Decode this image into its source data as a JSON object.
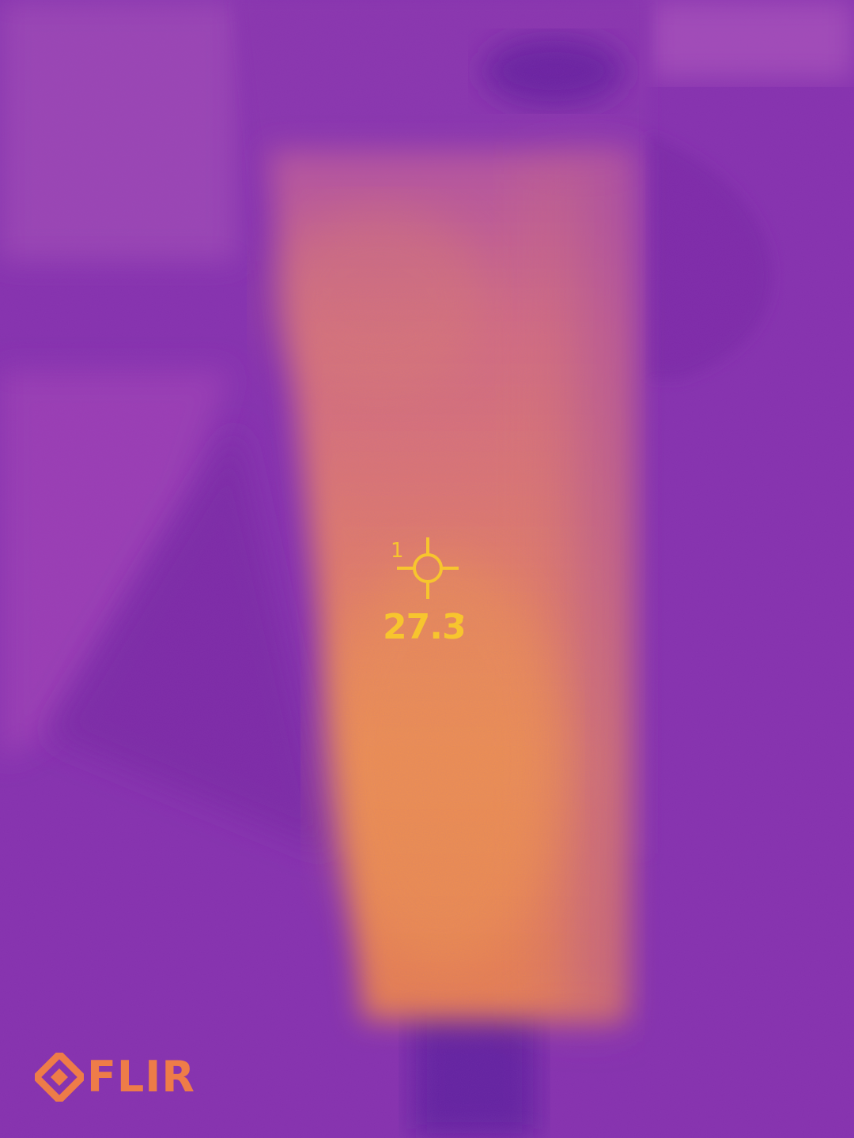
{
  "measurement": {
    "spot_id": "1",
    "temperature_value": "27.3",
    "temperature_unit": "°"
  },
  "logo": {
    "text": "FLIR"
  },
  "colors": {
    "reticle": "#f7c52e",
    "logo": "#ee7c48",
    "hot": "#f29a4a",
    "cool": "#7a2aa8"
  },
  "icons": {
    "reticle": "crosshair-icon",
    "logo_mark": "flir-diamond-icon"
  }
}
